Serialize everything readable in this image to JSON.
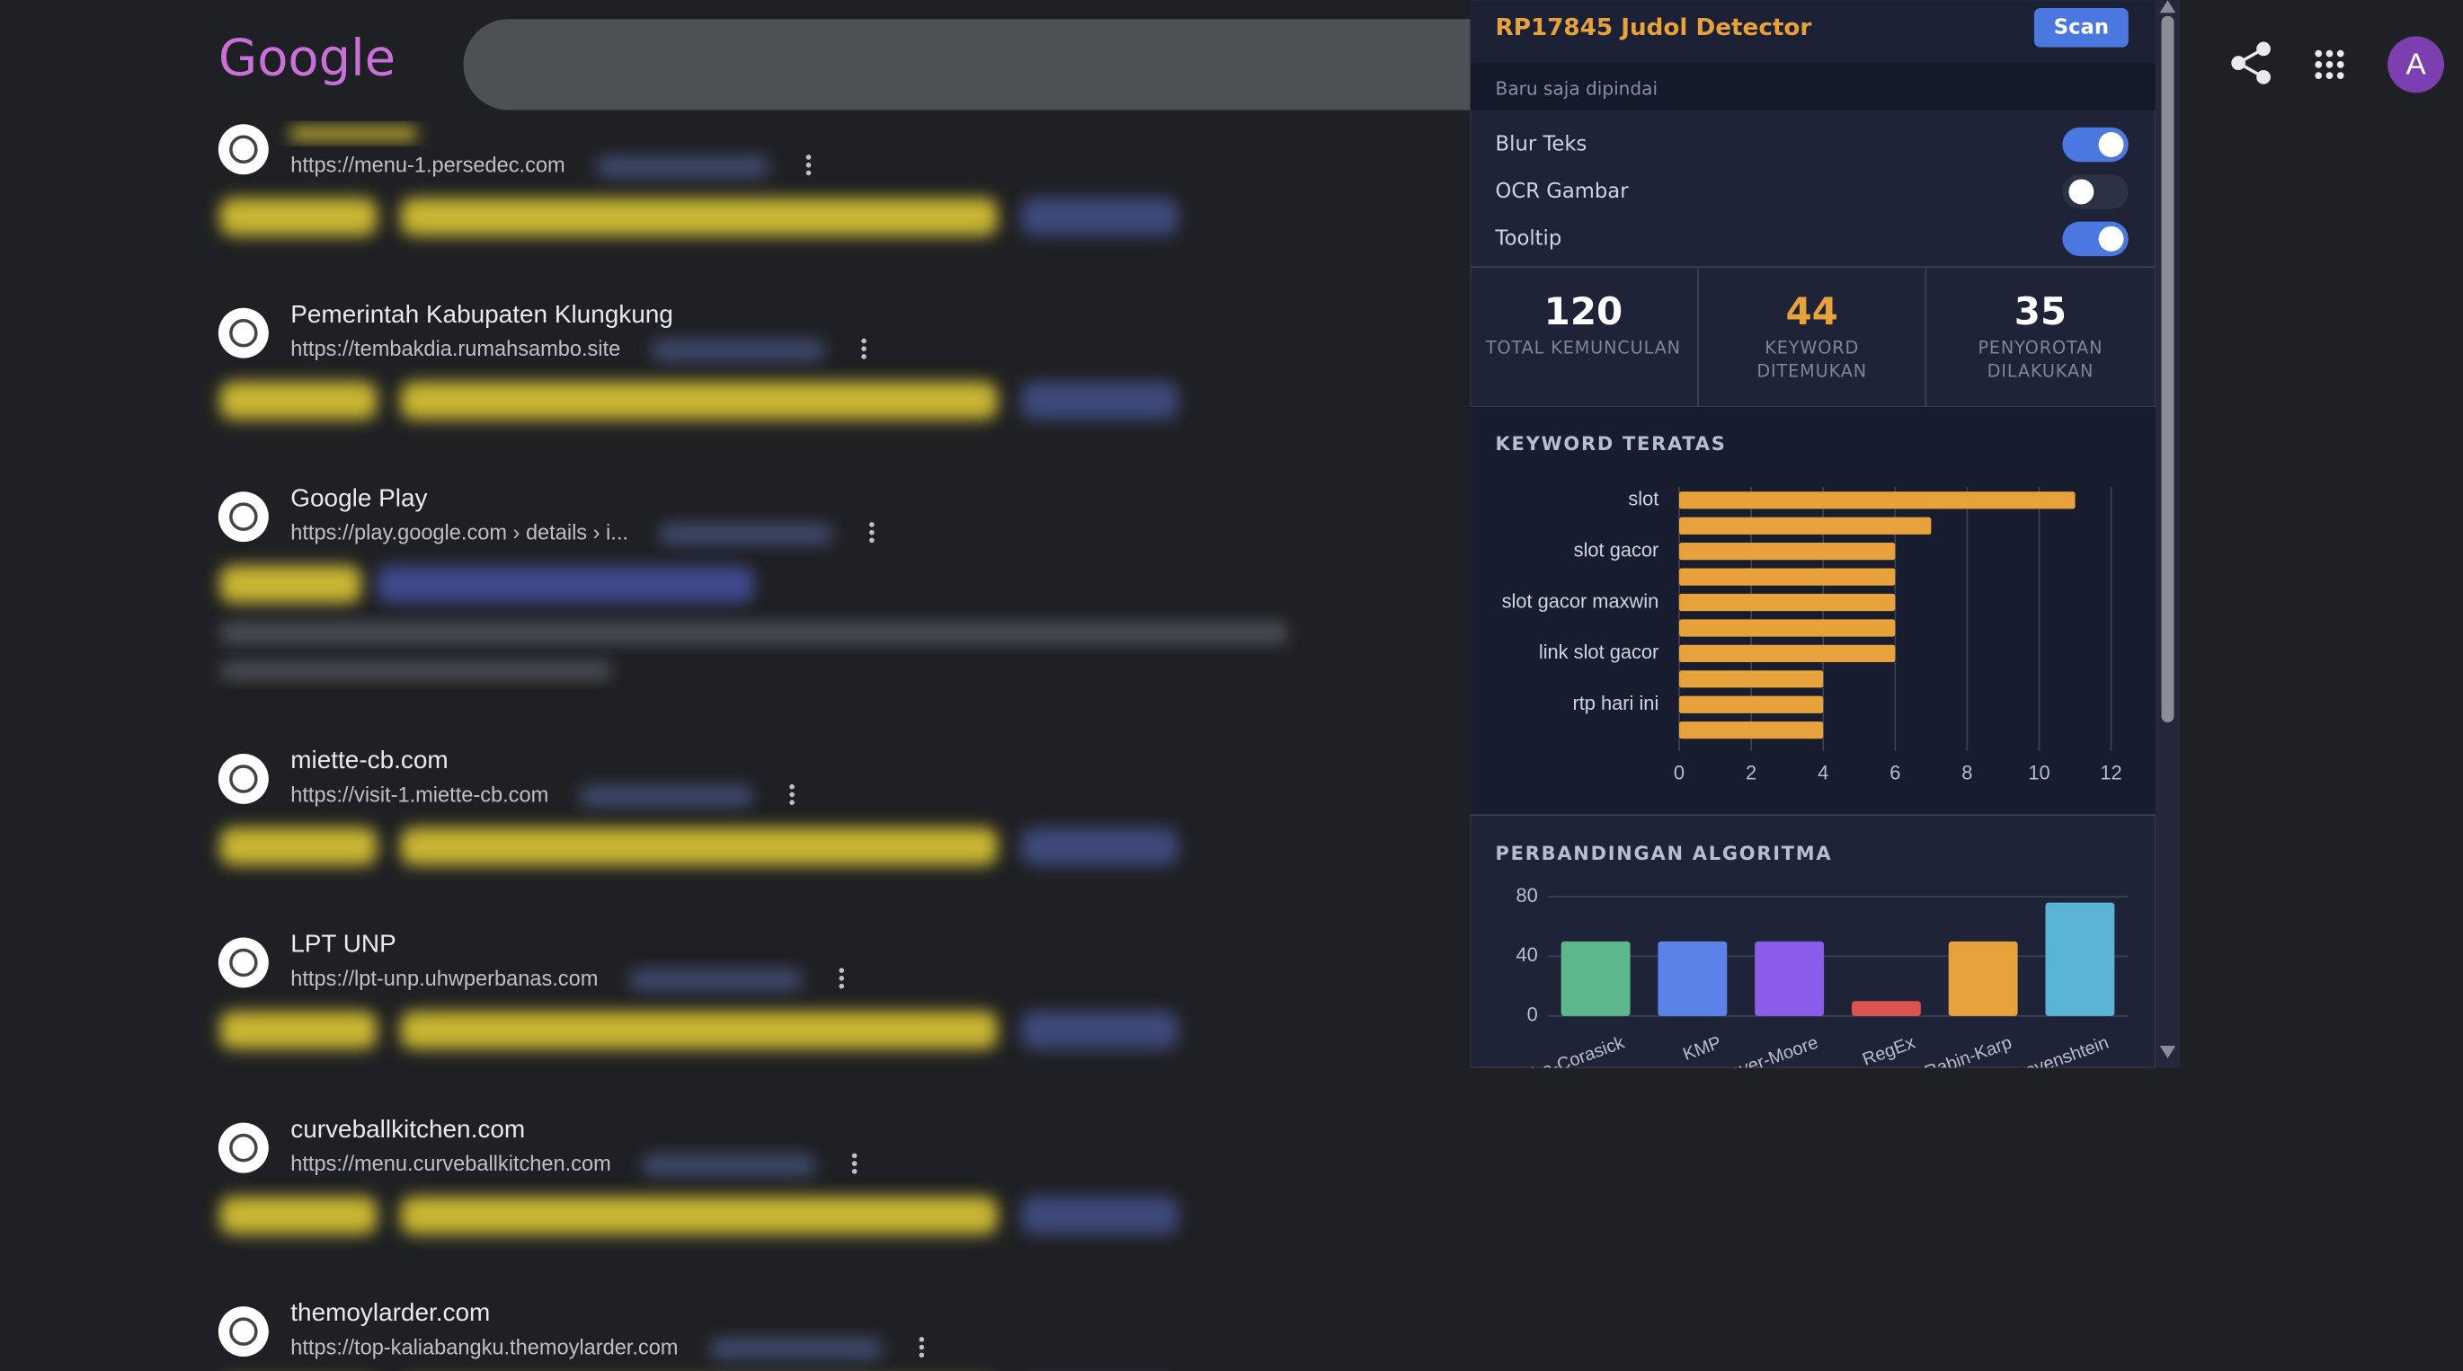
{
  "google_logo": "Google",
  "profile_initial": "A",
  "results": [
    {
      "url": "https://menu-1.persedec.com"
    },
    {
      "title": "Pemerintah Kabupaten Klungkung",
      "url": "https://tembakdia.rumahsambo.site"
    },
    {
      "title": "Google Play",
      "url": "https://play.google.com › details › i..."
    },
    {
      "title": "miette-cb.com",
      "url": "https://visit-1.miette-cb.com"
    },
    {
      "title": "LPT UNP",
      "url": "https://lpt-unp.uhwperbanas.com"
    },
    {
      "title": "curveballkitchen.com",
      "url": "https://menu.curveballkitchen.com"
    },
    {
      "title": "themoylarder.com",
      "url": "https://top-kaliabangku.themoylarder.com"
    }
  ],
  "extension": {
    "title": "RP17845 Judol Detector",
    "scan_button": "Scan",
    "status": "Baru saja dipindai",
    "toggles": [
      {
        "label": "Blur Teks",
        "on": true
      },
      {
        "label": "OCR Gambar",
        "on": false
      },
      {
        "label": "Tooltip",
        "on": true
      }
    ],
    "stats": [
      {
        "value": 120,
        "label": "TOTAL KEMUNCULAN",
        "color": "#ffffff"
      },
      {
        "value": 44,
        "label": "KEYWORD DITEMUKAN",
        "color": "#e8a23c"
      },
      {
        "value": 35,
        "label": "PENYOROTAN DILAKUKAN",
        "color": "#ffffff"
      }
    ],
    "keyword_chart": {
      "type": "bar",
      "orientation": "horizontal",
      "title": "KEYWORD TERATAS",
      "categories": [
        "slot",
        null,
        "slot gacor",
        null,
        "slot gacor maxwin",
        null,
        "link slot gacor",
        null,
        "rtp hari ini",
        null
      ],
      "values": [
        11,
        7,
        6,
        6,
        6,
        6,
        6,
        4,
        4,
        4
      ],
      "color": "#e8a23c",
      "xlim": [
        0,
        12
      ],
      "xticks": [
        0,
        2,
        4,
        6,
        8,
        10,
        12
      ],
      "grid": true
    },
    "algorithm_chart": {
      "type": "bar",
      "title": "PERBANDINGAN ALGORITMA",
      "categories": [
        "Aho-Corasick",
        "KMP",
        "Boyer-Moore",
        "RegEx",
        "Rabin-Karp",
        "Levenshtein"
      ],
      "values": [
        50,
        50,
        50,
        10,
        50,
        76
      ],
      "colors": [
        "#5cb88a",
        "#5b82e8",
        "#8a5ce8",
        "#d9534f",
        "#e8a23c",
        "#5ab4d4"
      ],
      "ylim": [
        0,
        80
      ],
      "yticks": [
        0,
        40,
        80
      ],
      "grid": true
    }
  }
}
